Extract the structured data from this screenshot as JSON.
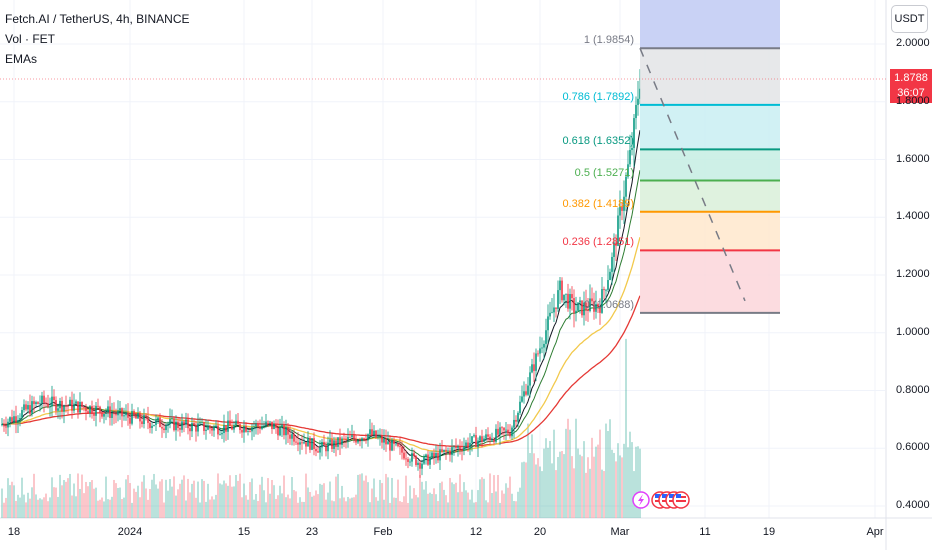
{
  "header": {
    "title": "Fetch.AI / TetherUS, 4h, BINANCE",
    "indicators": [
      "Vol · FET",
      "EMAs"
    ]
  },
  "price_scale": {
    "currency_button": "USDT",
    "current_price": "1.8788",
    "countdown": "36:07"
  },
  "fib": {
    "levels": [
      {
        "ratio_label": "1 (1.9854)",
        "price": 1.9854,
        "color": "#787b86",
        "fill": "#c9d2f5"
      },
      {
        "ratio_label": "0.786 (1.7892)",
        "price": 1.7892,
        "color": "#00bcd4",
        "fill": "#e3e4e6"
      },
      {
        "ratio_label": "0.618 (1.6352)",
        "price": 1.6352,
        "color": "#089981",
        "fill": "#c9eef2"
      },
      {
        "ratio_label": "0.5 (1.5271)",
        "price": 1.5271,
        "color": "#4caf50",
        "fill": "#c6ede3"
      },
      {
        "ratio_label": "0.382 (1.4189)",
        "price": 1.4189,
        "color": "#ff9800",
        "fill": "#d9f0d9"
      },
      {
        "ratio_label": "0.236 (1.2851)",
        "price": 1.2851,
        "color": "#f23645",
        "fill": "#ffe8cc"
      },
      {
        "ratio_label": "0 (1.0688)",
        "price": 1.0688,
        "color": "#787b86",
        "fill": "#fcd6da"
      }
    ]
  },
  "colors": {
    "up": "#089981",
    "down": "#f23645",
    "ema_fast": "#131722",
    "ema_mid": "#2e7d32",
    "ema_slow": "#f2c94c",
    "ema_long": "#e53935",
    "grid": "#f0f3fa"
  },
  "icons": [
    "lightning-icon",
    "us-flag-icon",
    "us-flag-icon",
    "us-flag-icon",
    "us-flag-icon"
  ],
  "chart_data": {
    "type": "candlestick",
    "title": "Fetch.AI / TetherUS, 4h, BINANCE",
    "y_axis": {
      "ticks": [
        "2.0000",
        "1.8000",
        "1.6000",
        "1.4000",
        "1.2000",
        "1.0000",
        "0.8000",
        "0.6000",
        "0.4000"
      ],
      "range": [
        0.38,
        2.14
      ]
    },
    "x_axis": {
      "ticks": [
        "18",
        "2024",
        "15",
        "23",
        "Feb",
        "12",
        "20",
        "Mar",
        "11",
        "19",
        "Apr"
      ]
    },
    "price_trend": {
      "x_labels_ref": [
        "18",
        "2024",
        "15",
        "23",
        "Feb",
        "12",
        "20",
        "Mar"
      ],
      "close_approx": [
        0.72,
        0.7,
        0.68,
        0.6,
        0.57,
        0.68,
        0.95,
        1.88
      ]
    },
    "last_price": 1.8788
  }
}
